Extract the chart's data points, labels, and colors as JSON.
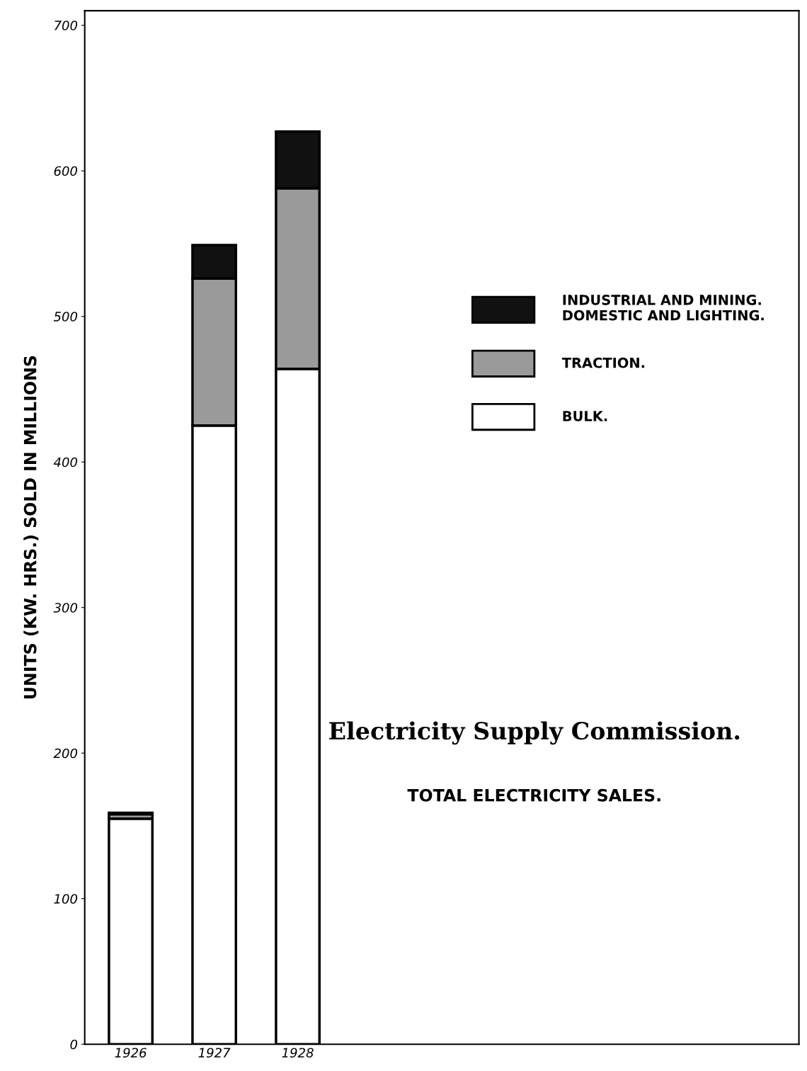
{
  "chart_data": {
    "type": "bar",
    "title": "Electricity Supply Commission.",
    "subtitle": "TOTAL ELECTRICITY SALES.",
    "ylabel": "UNITS (KW. HRS.) SOLD IN MILLIONS",
    "categories": [
      "1926",
      "1927",
      "1928"
    ],
    "stacked": true,
    "series": [
      {
        "name": "BULK.",
        "color": "#ffffff",
        "values": [
          155,
          425,
          464
        ]
      },
      {
        "name": "TRACTION.",
        "color": "#9a9a9a",
        "values": [
          3,
          101,
          124
        ]
      },
      {
        "name": "INDUSTRIAL AND MINING.\nDOMESTIC AND LIGHTING.",
        "color": "#111111",
        "values": [
          1,
          23,
          39
        ]
      }
    ],
    "ylim": [
      0,
      710
    ],
    "yticks": [
      0,
      100,
      200,
      300,
      400,
      500,
      600,
      700
    ],
    "grid": false,
    "legend": "right"
  }
}
